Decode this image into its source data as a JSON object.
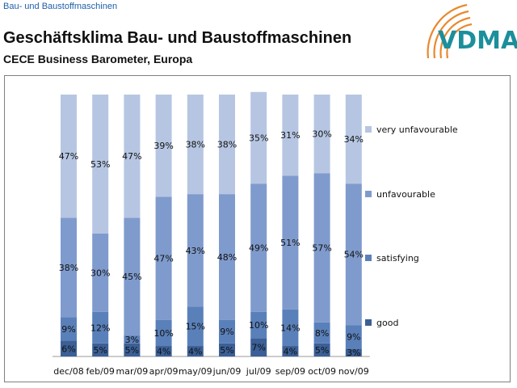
{
  "header": {
    "section": "Bau- und Baustoffmaschinen",
    "title": "Geschäftsklima Bau- und Baustoffmaschinen",
    "subtitle": "CECE Business Barometer, Europa",
    "logo_text": "VDMA"
  },
  "colors": {
    "good": "#3b5f96",
    "satisfying": "#5a80ba",
    "unfavourable": "#7f9bcd",
    "very_unfavourable": "#b6c6e2",
    "logo_orange": "#e8892d",
    "logo_teal": "#1b8f9c"
  },
  "chart_data": {
    "type": "bar",
    "stacked": true,
    "categories": [
      "dec/08",
      "feb/09",
      "mar/09",
      "apr/09",
      "may/09",
      "jun/09",
      "jul/09",
      "sep/09",
      "oct/09",
      "nov/09"
    ],
    "series": [
      {
        "name": "good",
        "values": [
          6,
          5,
          5,
          4,
          4,
          5,
          7,
          4,
          5,
          3
        ]
      },
      {
        "name": "satisfying",
        "values": [
          9,
          12,
          3,
          10,
          15,
          9,
          10,
          14,
          8,
          9
        ]
      },
      {
        "name": "unfavourable",
        "values": [
          38,
          30,
          45,
          47,
          43,
          48,
          49,
          51,
          57,
          54
        ]
      },
      {
        "name": "very unfavourable",
        "values": [
          47,
          53,
          47,
          39,
          38,
          38,
          35,
          31,
          30,
          34
        ]
      }
    ],
    "legend": [
      "very unfavourable",
      "unfavourable",
      "satisfying",
      "good"
    ],
    "legend_position": "right",
    "unit": "%",
    "ylim": [
      0,
      100
    ]
  }
}
